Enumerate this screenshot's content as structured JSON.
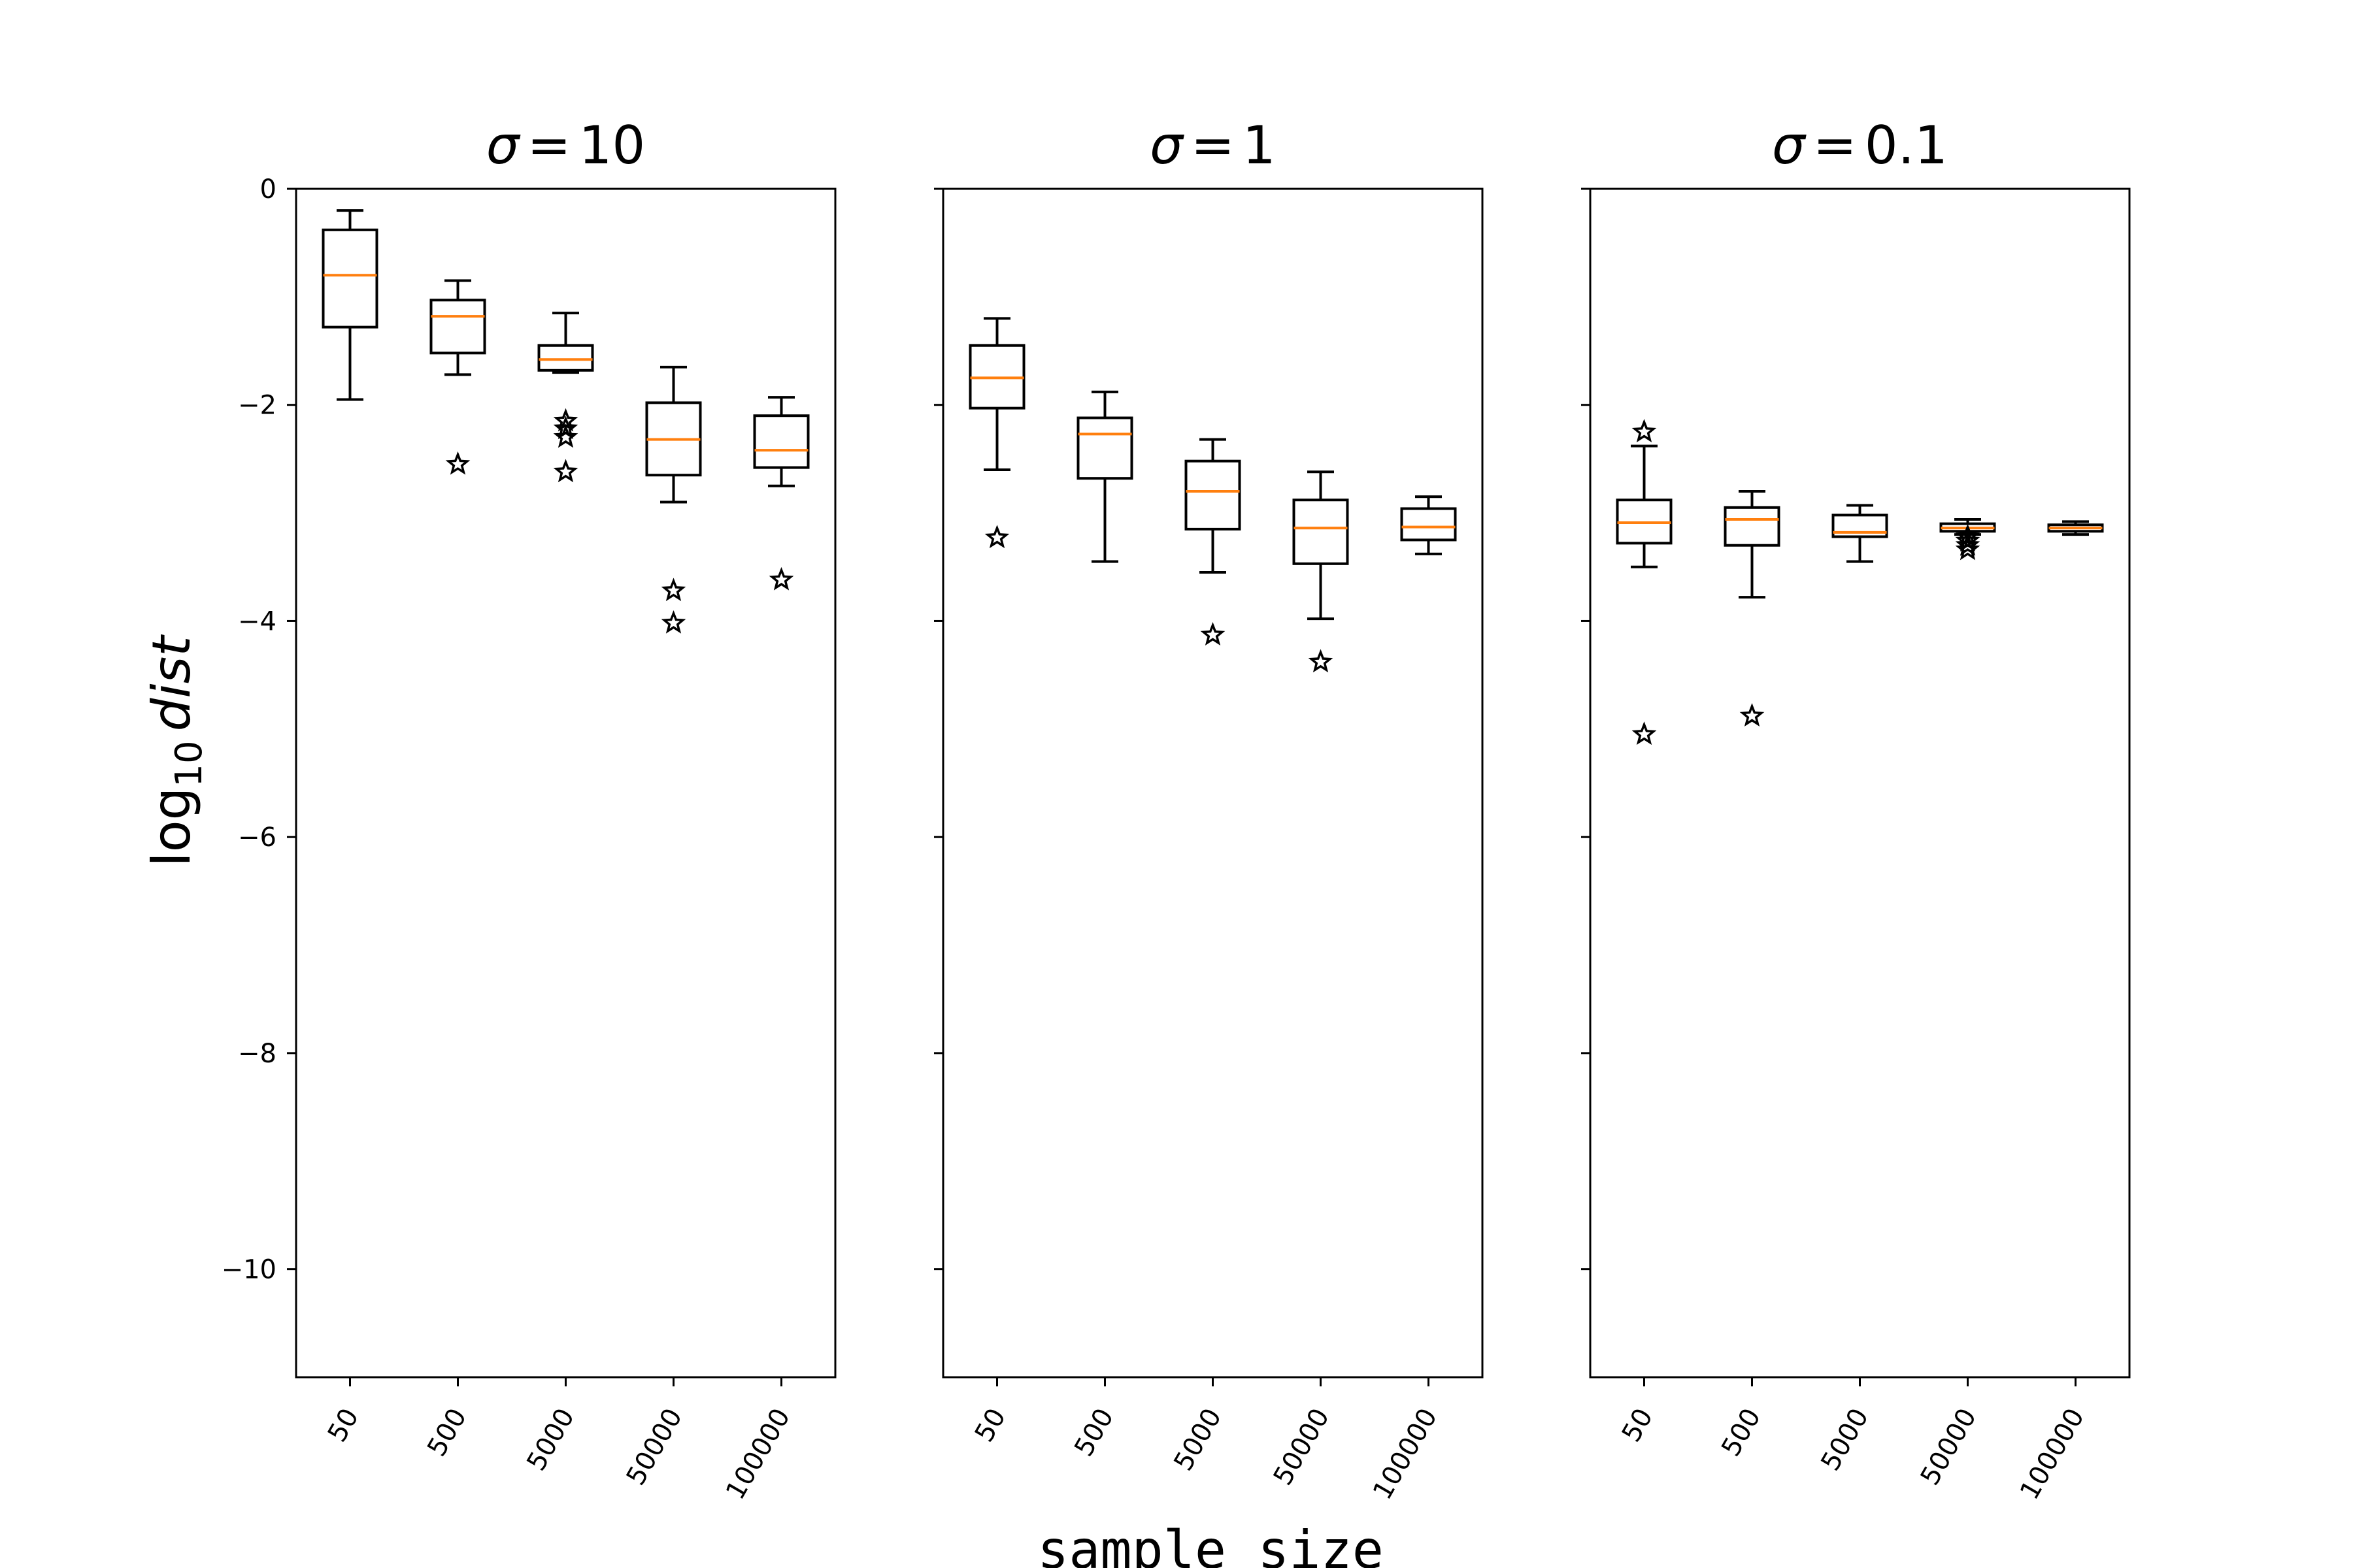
{
  "chart_data": {
    "type": "boxplot",
    "ylabel": "log10 dist",
    "xlabel": "sample size",
    "ylim": [
      -11,
      0
    ],
    "yticks": [
      0,
      -2,
      -4,
      -6,
      -8,
      -10
    ],
    "ytick_labels": [
      "0",
      "−2",
      "−4",
      "−6",
      "−8",
      "−10"
    ],
    "categories": [
      "50",
      "500",
      "5000",
      "50000",
      "100000"
    ],
    "colors": {
      "median": "#ff7f0e",
      "box": "#000000",
      "background": "#ffffff"
    },
    "panels": [
      {
        "title": "σ = 10",
        "title_symbol": "σ",
        "title_value": "10",
        "boxes": [
          {
            "category": "50",
            "whisker_low": -1.95,
            "q1": -1.28,
            "median": -0.8,
            "q3": -0.38,
            "whisker_high": -0.2,
            "fliers": []
          },
          {
            "category": "500",
            "whisker_low": -1.72,
            "q1": -1.52,
            "median": -1.18,
            "q3": -1.03,
            "whisker_high": -0.85,
            "fliers": [
              -2.55
            ]
          },
          {
            "category": "5000",
            "whisker_low": -1.7,
            "q1": -1.68,
            "median": -1.58,
            "q3": -1.45,
            "whisker_high": -1.15,
            "fliers": [
              -2.15,
              -2.22,
              -2.3,
              -2.62
            ]
          },
          {
            "category": "50000",
            "whisker_low": -2.9,
            "q1": -2.65,
            "median": -2.32,
            "q3": -1.98,
            "whisker_high": -1.65,
            "fliers": [
              -3.72,
              -4.02
            ]
          },
          {
            "category": "100000",
            "whisker_low": -2.75,
            "q1": -2.58,
            "median": -2.42,
            "q3": -2.1,
            "whisker_high": -1.93,
            "fliers": [
              -3.62
            ]
          }
        ]
      },
      {
        "title": "σ = 1",
        "title_symbol": "σ",
        "title_value": "1",
        "boxes": [
          {
            "category": "50",
            "whisker_low": -2.6,
            "q1": -2.03,
            "median": -1.75,
            "q3": -1.45,
            "whisker_high": -1.2,
            "fliers": [
              -3.23
            ]
          },
          {
            "category": "500",
            "whisker_low": -3.45,
            "q1": -2.68,
            "median": -2.27,
            "q3": -2.12,
            "whisker_high": -1.88,
            "fliers": []
          },
          {
            "category": "5000",
            "whisker_low": -3.55,
            "q1": -3.15,
            "median": -2.8,
            "q3": -2.52,
            "whisker_high": -2.32,
            "fliers": [
              -4.13
            ]
          },
          {
            "category": "50000",
            "whisker_low": -3.98,
            "q1": -3.47,
            "median": -3.14,
            "q3": -2.88,
            "whisker_high": -2.62,
            "fliers": [
              -4.38
            ]
          },
          {
            "category": "100000",
            "whisker_low": -3.38,
            "q1": -3.25,
            "median": -3.13,
            "q3": -2.96,
            "whisker_high": -2.85,
            "fliers": []
          }
        ]
      },
      {
        "title": "σ = 0.1",
        "title_symbol": "σ",
        "title_value": "0.1",
        "boxes": [
          {
            "category": "50",
            "whisker_low": -3.5,
            "q1": -3.28,
            "median": -3.09,
            "q3": -2.88,
            "whisker_high": -2.38,
            "fliers": [
              -2.25,
              -5.05
            ]
          },
          {
            "category": "500",
            "whisker_low": -3.78,
            "q1": -3.3,
            "median": -3.06,
            "q3": -2.95,
            "whisker_high": -2.8,
            "fliers": [
              -4.88
            ]
          },
          {
            "category": "5000",
            "whisker_low": -3.45,
            "q1": -3.22,
            "median": -3.18,
            "q3": -3.02,
            "whisker_high": -2.93,
            "fliers": []
          },
          {
            "category": "50000",
            "whisker_low": -3.2,
            "q1": -3.17,
            "median": -3.14,
            "q3": -3.1,
            "whisker_high": -3.06,
            "fliers": [
              -3.22,
              -3.26,
              -3.3,
              -3.34
            ]
          },
          {
            "category": "100000",
            "whisker_low": -3.2,
            "q1": -3.17,
            "median": -3.14,
            "q3": -3.11,
            "whisker_high": -3.08,
            "fliers": []
          }
        ]
      }
    ]
  }
}
